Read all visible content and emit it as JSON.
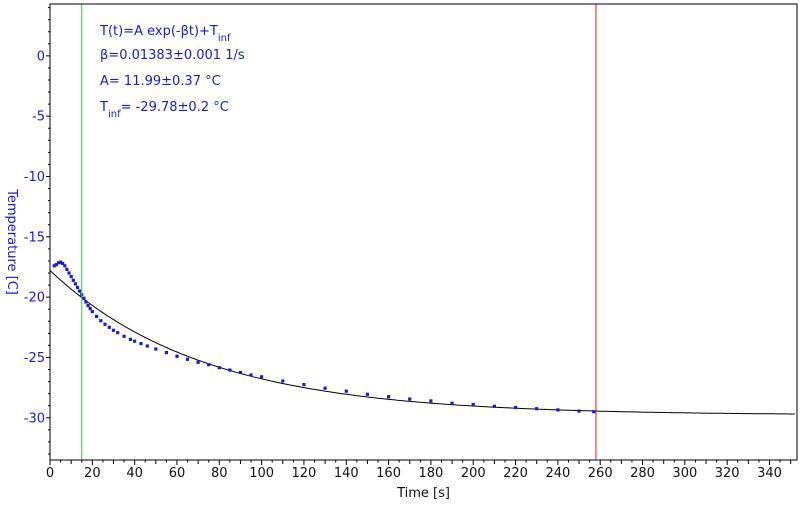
{
  "chart_data": {
    "type": "scatter",
    "title": "",
    "xlabel": "Time [s]",
    "ylabel": "Temperature [C]",
    "xlim": [
      0,
      353
    ],
    "ylim": [
      -33.5,
      4.3
    ],
    "x_ticks": [
      0,
      20,
      40,
      60,
      80,
      100,
      120,
      140,
      160,
      180,
      200,
      220,
      240,
      260,
      280,
      300,
      320,
      340
    ],
    "y_ticks": [
      0,
      -5,
      -10,
      -15,
      -20,
      -25,
      -30
    ],
    "grid": false,
    "legend": "none",
    "annotation_lines": [
      {
        "text": "T(t)=A exp(-βt)+T",
        "sub": "inf"
      },
      {
        "text": "β=0.01383±0.001 1/s",
        "sub": ""
      },
      {
        "text": "A= 11.99±0.37 °C",
        "sub": ""
      },
      {
        "text": "T",
        "sub": "inf",
        "tail": "= -29.78±0.2 °C"
      }
    ],
    "fit": {
      "A": 11.99,
      "beta": 0.01383,
      "T_inf": -29.78,
      "x_range": [
        0,
        352
      ]
    },
    "vertical_lines": [
      {
        "x": 15,
        "color": "#33cc33"
      },
      {
        "x": 258,
        "color": "#dd2222"
      }
    ],
    "series": [
      {
        "marker_color": "#1a1ad0",
        "x": [
          2,
          3,
          4,
          5,
          6,
          7,
          8,
          9,
          10,
          11,
          12,
          13,
          14,
          15,
          16,
          17,
          18,
          19,
          20,
          22,
          24,
          26,
          28,
          30,
          32,
          35,
          38,
          40,
          43,
          46,
          50,
          55,
          60,
          65,
          70,
          75,
          80,
          85,
          90,
          95,
          100,
          110,
          120,
          130,
          140,
          150,
          160,
          170,
          180,
          190,
          200,
          210,
          220,
          230,
          240,
          250,
          257
        ],
        "y": [
          -17.4,
          -17.3,
          -17.15,
          -17.1,
          -17.2,
          -17.4,
          -17.7,
          -18.0,
          -18.3,
          -18.6,
          -18.9,
          -19.2,
          -19.5,
          -19.8,
          -20.1,
          -20.4,
          -20.7,
          -20.95,
          -21.2,
          -21.6,
          -21.95,
          -22.25,
          -22.5,
          -22.75,
          -22.95,
          -23.25,
          -23.5,
          -23.65,
          -23.85,
          -24.05,
          -24.3,
          -24.6,
          -24.9,
          -25.15,
          -25.4,
          -25.6,
          -25.85,
          -26.05,
          -26.25,
          -26.45,
          -26.6,
          -26.95,
          -27.25,
          -27.55,
          -27.8,
          -28.05,
          -28.25,
          -28.45,
          -28.6,
          -28.8,
          -28.9,
          -29.05,
          -29.15,
          -29.25,
          -29.35,
          -29.45,
          -29.5
        ]
      }
    ]
  }
}
